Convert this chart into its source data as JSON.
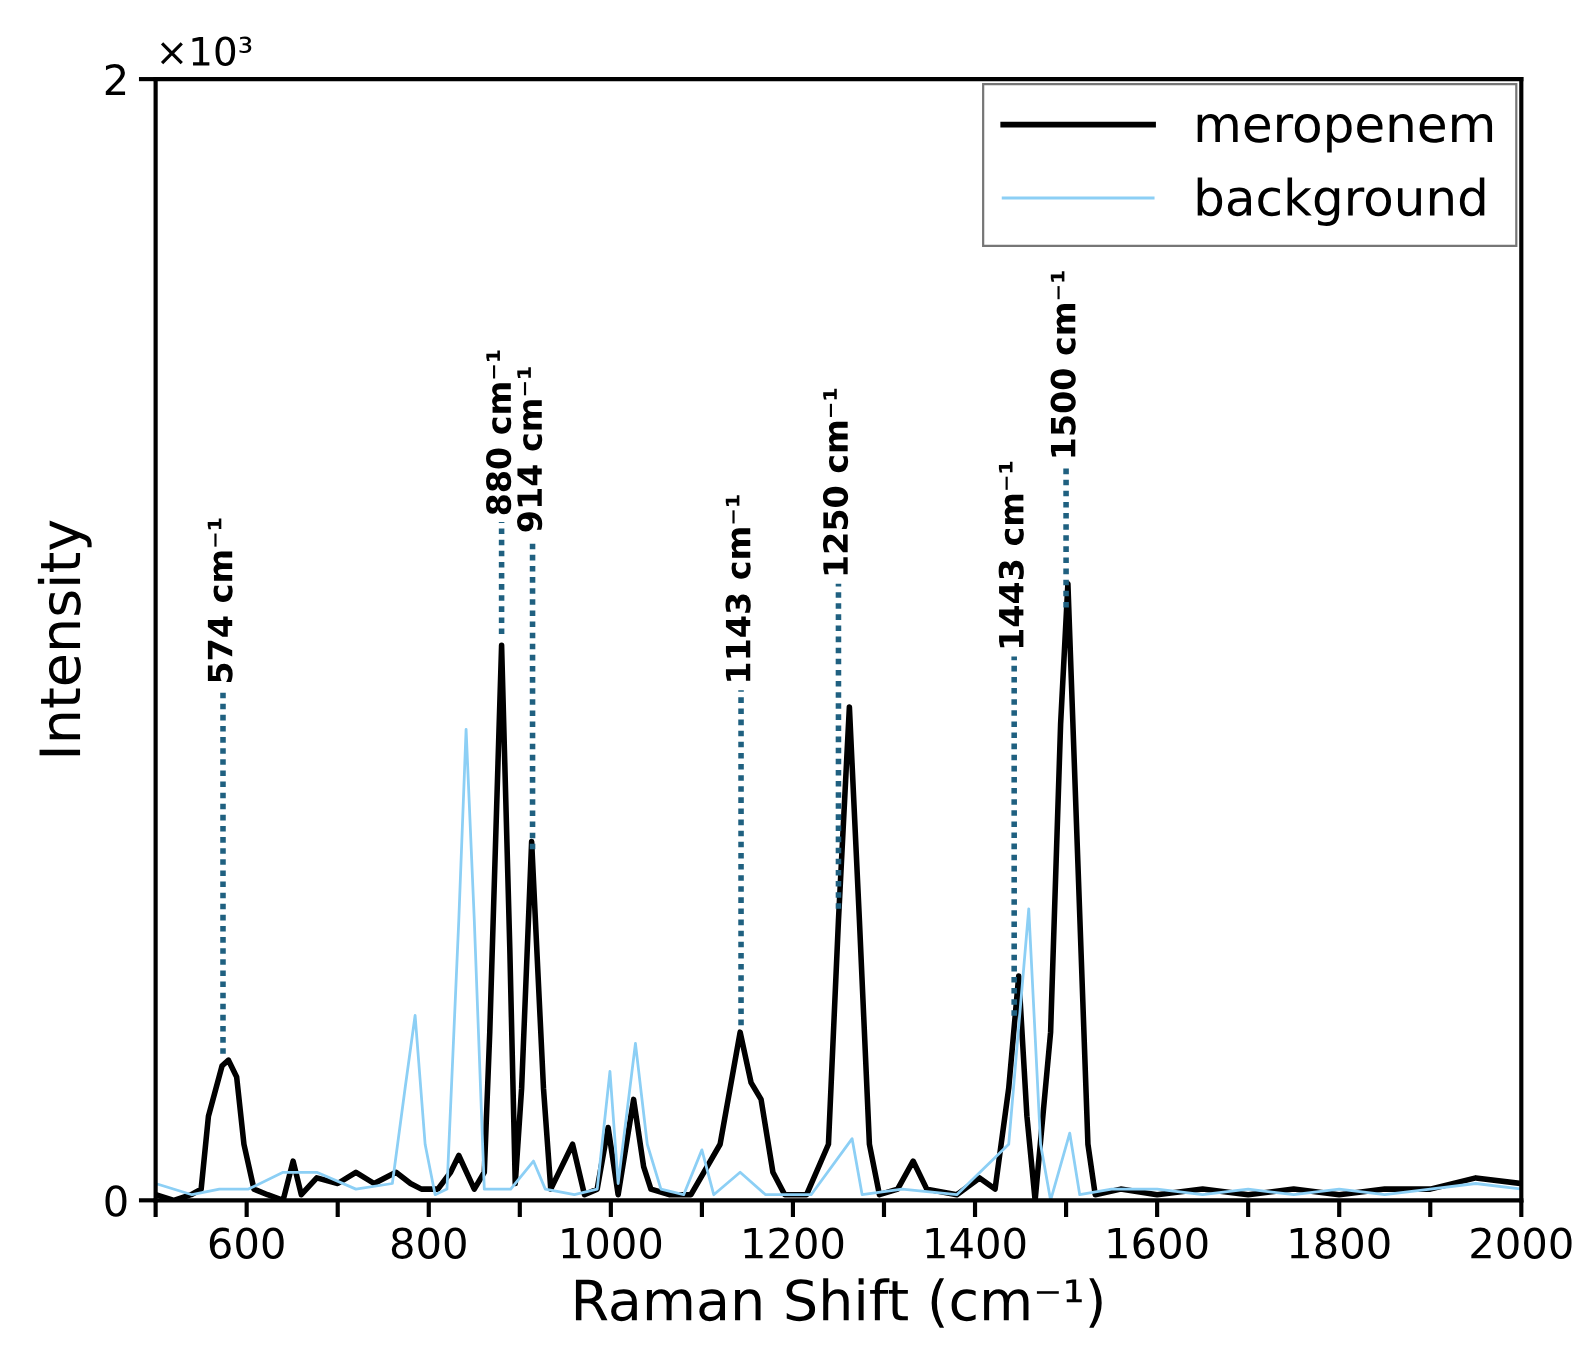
{
  "chart_data": {
    "type": "line",
    "xlabel": "Raman Shift (cm⁻¹)",
    "ylabel": "Intensity",
    "xlim": [
      500,
      2000
    ],
    "ylim": [
      0,
      2
    ],
    "xticks": [
      {
        "value": 500,
        "label": null
      },
      600,
      {
        "value": 700,
        "label": null
      },
      800,
      {
        "value": 900,
        "label": null
      },
      1000,
      {
        "value": 1100,
        "label": null
      },
      1200,
      {
        "value": 1300,
        "label": null
      },
      1400,
      {
        "value": 1500,
        "label": null
      },
      1600,
      {
        "value": 1700,
        "label": null
      },
      1800,
      {
        "value": 1900,
        "label": null
      },
      2000
    ],
    "yticks": [
      0,
      2
    ],
    "grid": false,
    "legend": "top right",
    "line_style": "solid",
    "marker": "none",
    "series": [
      {
        "name": "meropenem",
        "color": "#000000",
        "x": [
          500,
          520,
          539,
          550,
          558,
          573,
          580,
          589,
          597,
          608,
          623,
          640,
          651,
          660,
          677,
          700,
          720,
          740,
          764,
          780,
          792,
          810,
          824,
          833,
          850,
          861,
          867,
          880,
          889,
          895,
          902,
          913,
          926,
          934,
          958,
          971,
          985,
          997,
          1008,
          1025,
          1036,
          1044,
          1065,
          1088,
          1120,
          1142,
          1154,
          1165,
          1178,
          1191,
          1215,
          1239,
          1250,
          1262,
          1273,
          1284,
          1295,
          1315,
          1332,
          1347,
          1380,
          1405,
          1422,
          1437,
          1448,
          1457,
          1466,
          1483,
          1494,
          1502,
          1513,
          1524,
          1532,
          1560,
          1600,
          1650,
          1700,
          1750,
          1800,
          1850,
          1900,
          1950,
          2000
        ],
        "values": [
          0.01,
          0.0,
          0.01,
          0.02,
          0.15,
          0.24,
          0.25,
          0.22,
          0.1,
          0.02,
          0.01,
          0.0,
          0.07,
          0.01,
          0.04,
          0.03,
          0.05,
          0.03,
          0.05,
          0.03,
          0.02,
          0.02,
          0.05,
          0.08,
          0.02,
          0.05,
          0.3,
          0.99,
          0.45,
          0.03,
          0.2,
          0.64,
          0.2,
          0.02,
          0.1,
          0.01,
          0.02,
          0.13,
          0.01,
          0.18,
          0.06,
          0.02,
          0.01,
          0.01,
          0.1,
          0.3,
          0.21,
          0.18,
          0.05,
          0.01,
          0.01,
          0.1,
          0.5,
          0.88,
          0.5,
          0.1,
          0.01,
          0.02,
          0.07,
          0.02,
          0.01,
          0.04,
          0.02,
          0.2,
          0.4,
          0.15,
          0.0,
          0.3,
          0.85,
          1.1,
          0.6,
          0.1,
          0.01,
          0.02,
          0.01,
          0.02,
          0.01,
          0.02,
          0.01,
          0.02,
          0.02,
          0.04,
          0.03
        ]
      },
      {
        "name": "background",
        "color": "#8ccff5",
        "x": [
          500,
          540,
          570,
          602,
          640,
          677,
          720,
          760,
          774,
          785,
          796,
          807,
          820,
          833,
          841,
          850,
          861,
          890,
          915,
          928,
          960,
          985,
          999,
          1008,
          1027,
          1040,
          1055,
          1080,
          1100,
          1113,
          1142,
          1170,
          1220,
          1265,
          1276,
          1320,
          1380,
          1437,
          1459,
          1472,
          1483,
          1504,
          1515,
          1550,
          1600,
          1650,
          1700,
          1750,
          1800,
          1850,
          1900,
          1950,
          2000
        ],
        "values": [
          0.03,
          0.01,
          0.02,
          0.02,
          0.05,
          0.05,
          0.02,
          0.03,
          0.2,
          0.33,
          0.1,
          0.01,
          0.02,
          0.5,
          0.84,
          0.5,
          0.02,
          0.02,
          0.07,
          0.02,
          0.01,
          0.02,
          0.23,
          0.03,
          0.28,
          0.1,
          0.02,
          0.01,
          0.09,
          0.01,
          0.05,
          0.01,
          0.01,
          0.11,
          0.01,
          0.02,
          0.01,
          0.1,
          0.52,
          0.1,
          0.0,
          0.12,
          0.01,
          0.02,
          0.02,
          0.01,
          0.02,
          0.01,
          0.02,
          0.01,
          0.02,
          0.03,
          0.02
        ]
      }
    ],
    "annotations": [
      "×10³"
    ],
    "ref_lines": [
      {
        "axis": "x",
        "value": 574,
        "label": "574 cm⁻¹",
        "color": "#1f6080",
        "line_style": "dotted"
      },
      {
        "axis": "x",
        "value": 880,
        "label": "880 cm⁻¹",
        "color": "#1f6080",
        "line_style": "dotted"
      },
      {
        "axis": "x",
        "value": 914,
        "label": "914 cm⁻¹",
        "color": "#1f6080",
        "line_style": "dotted"
      },
      {
        "axis": "x",
        "value": 1143,
        "label": "1143 cm⁻¹",
        "color": "#1f6080",
        "line_style": "dotted"
      },
      {
        "axis": "x",
        "value": 1250,
        "label": "1250 cm⁻¹",
        "color": "#1f6080",
        "line_style": "dotted"
      },
      {
        "axis": "x",
        "value": 1443,
        "label": "1443 cm⁻¹",
        "color": "#1f6080",
        "line_style": "dotted"
      },
      {
        "axis": "x",
        "value": 1500,
        "label": "1500 cm⁻¹",
        "color": "#1f6080",
        "line_style": "dotted"
      }
    ]
  }
}
